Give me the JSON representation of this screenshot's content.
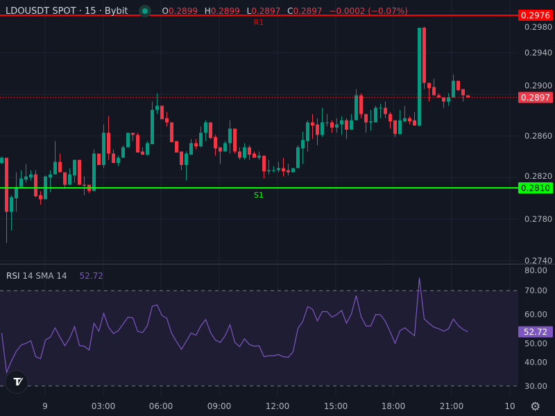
{
  "header": {
    "symbol": "LDOUSDT SPOT · 15 · Bybit",
    "status_color": "#089981",
    "ohlc": {
      "o_label": "O",
      "o": "0.2899",
      "h_label": "H",
      "h": "0.2899",
      "l_label": "L",
      "l": "0.2897",
      "c_label": "C",
      "c": "0.2897",
      "change": "−0.0002 (−0.07%)"
    }
  },
  "rsi_legend": {
    "name": "RSI",
    "params": "14 SMA 14",
    "value": "52.72"
  },
  "levels": [
    {
      "label": "R1",
      "price": 0.2976,
      "price_text": "0.2976",
      "color": "#ff0000"
    },
    {
      "label": "S1",
      "price": 0.281,
      "price_text": "0.2810",
      "color": "#00ff00"
    }
  ],
  "last_price": {
    "price": 0.2897,
    "text": "0.2897",
    "color": "#f23645"
  },
  "rsi_last": {
    "value": 52.72,
    "text": "52.72",
    "color": "#7e57c2"
  },
  "time_axis": [
    "9",
    "03:00",
    "06:00",
    "09:00",
    "12:00",
    "15:00",
    "18:00",
    "21:00",
    "10"
  ],
  "gear_icon": "gear-icon",
  "logo": "TV",
  "chart_data": [
    {
      "type": "candlestick",
      "colors": {
        "up": "#089981",
        "down": "#f23645"
      },
      "interval": "15",
      "price_ticks": [
        "0.2980",
        "0.2940",
        "0.2900",
        "0.2860",
        "0.2820",
        "0.2780",
        "0.2740"
      ],
      "ylim": [
        0.273,
        0.2983
      ],
      "grid": true,
      "candles_ohlc": [
        [
          0.2834,
          0.284,
          0.2833,
          0.2839
        ],
        [
          0.2839,
          0.2839,
          0.2757,
          0.2787
        ],
        [
          0.2787,
          0.2803,
          0.2769,
          0.2801
        ],
        [
          0.28,
          0.2825,
          0.2787,
          0.2811
        ],
        [
          0.2811,
          0.2827,
          0.2811,
          0.2819
        ],
        [
          0.2818,
          0.2833,
          0.2815,
          0.2821
        ],
        [
          0.282,
          0.2827,
          0.2817,
          0.2823
        ],
        [
          0.2823,
          0.2827,
          0.2801,
          0.2802
        ],
        [
          0.2803,
          0.2807,
          0.2794,
          0.2799
        ],
        [
          0.2799,
          0.2822,
          0.2799,
          0.2821
        ],
        [
          0.282,
          0.2827,
          0.2806,
          0.2823
        ],
        [
          0.2823,
          0.2855,
          0.2823,
          0.2835
        ],
        [
          0.2835,
          0.2843,
          0.2825,
          0.2825
        ],
        [
          0.2825,
          0.2825,
          0.2809,
          0.2813
        ],
        [
          0.2813,
          0.2829,
          0.2813,
          0.2823
        ],
        [
          0.2822,
          0.2837,
          0.2815,
          0.2837
        ],
        [
          0.2837,
          0.2837,
          0.2813,
          0.2813
        ],
        [
          0.2813,
          0.2821,
          0.2803,
          0.2812
        ],
        [
          0.2813,
          0.2813,
          0.2805,
          0.2807
        ],
        [
          0.2807,
          0.2847,
          0.2807,
          0.2843
        ],
        [
          0.2843,
          0.2843,
          0.2832,
          0.2832
        ],
        [
          0.2832,
          0.2871,
          0.2829,
          0.2863
        ],
        [
          0.2863,
          0.2879,
          0.2837,
          0.2843
        ],
        [
          0.2843,
          0.2847,
          0.2834,
          0.2834
        ],
        [
          0.2834,
          0.2841,
          0.2831,
          0.2839
        ],
        [
          0.2839,
          0.2851,
          0.2839,
          0.2849
        ],
        [
          0.2849,
          0.2863,
          0.2849,
          0.2863
        ],
        [
          0.2863,
          0.2863,
          0.2855,
          0.2861
        ],
        [
          0.2861,
          0.2863,
          0.2844,
          0.2844
        ],
        [
          0.2845,
          0.2849,
          0.2842,
          0.2842
        ],
        [
          0.2842,
          0.2855,
          0.2841,
          0.2853
        ],
        [
          0.2852,
          0.2893,
          0.2852,
          0.2885
        ],
        [
          0.2885,
          0.2901,
          0.2881,
          0.2889
        ],
        [
          0.2889,
          0.2889,
          0.2876,
          0.2876
        ],
        [
          0.2877,
          0.2883,
          0.2869,
          0.2873
        ],
        [
          0.2873,
          0.2873,
          0.2854,
          0.2854
        ],
        [
          0.2855,
          0.2855,
          0.2844,
          0.2844
        ],
        [
          0.2845,
          0.2845,
          0.2827,
          0.2832
        ],
        [
          0.2832,
          0.2845,
          0.2817,
          0.2843
        ],
        [
          0.2842,
          0.2857,
          0.2842,
          0.2853
        ],
        [
          0.2853,
          0.2857,
          0.2847,
          0.285
        ],
        [
          0.285,
          0.2869,
          0.2849,
          0.2863
        ],
        [
          0.2863,
          0.2875,
          0.2855,
          0.2873
        ],
        [
          0.2873,
          0.2873,
          0.2857,
          0.2858
        ],
        [
          0.2859,
          0.2861,
          0.2841,
          0.2848
        ],
        [
          0.2849,
          0.2849,
          0.2833,
          0.2845
        ],
        [
          0.2845,
          0.2855,
          0.2845,
          0.2853
        ],
        [
          0.2853,
          0.2875,
          0.2843,
          0.2867
        ],
        [
          0.2867,
          0.2867,
          0.2843,
          0.2845
        ],
        [
          0.2845,
          0.2849,
          0.2837,
          0.2839
        ],
        [
          0.2839,
          0.2853,
          0.2837,
          0.2849
        ],
        [
          0.2849,
          0.2851,
          0.2837,
          0.2842
        ],
        [
          0.2843,
          0.2845,
          0.2839,
          0.2839
        ],
        [
          0.2839,
          0.2845,
          0.2837,
          0.2841
        ],
        [
          0.2841,
          0.2841,
          0.2819,
          0.2826
        ],
        [
          0.2826,
          0.2837,
          0.2823,
          0.2827
        ],
        [
          0.2827,
          0.2831,
          0.2825,
          0.2827
        ],
        [
          0.2827,
          0.2835,
          0.2825,
          0.2829
        ],
        [
          0.2829,
          0.2839,
          0.2821,
          0.2826
        ],
        [
          0.2827,
          0.2833,
          0.2822,
          0.2825
        ],
        [
          0.2825,
          0.2829,
          0.2825,
          0.2829
        ],
        [
          0.2829,
          0.2851,
          0.2829,
          0.2849
        ],
        [
          0.2848,
          0.2864,
          0.2833,
          0.2856
        ],
        [
          0.2855,
          0.2875,
          0.2845,
          0.2873
        ],
        [
          0.2873,
          0.2881,
          0.2857,
          0.287
        ],
        [
          0.2871,
          0.2877,
          0.2851,
          0.2861
        ],
        [
          0.2861,
          0.2887,
          0.2859,
          0.2873
        ],
        [
          0.2873,
          0.2881,
          0.2869,
          0.2873
        ],
        [
          0.2873,
          0.2875,
          0.2863,
          0.2868
        ],
        [
          0.2868,
          0.2877,
          0.2863,
          0.2871
        ],
        [
          0.2871,
          0.2879,
          0.2861,
          0.2875
        ],
        [
          0.2875,
          0.2877,
          0.2857,
          0.2866
        ],
        [
          0.2866,
          0.2881,
          0.2866,
          0.2875
        ],
        [
          0.2875,
          0.2905,
          0.2875,
          0.2899
        ],
        [
          0.2899,
          0.2901,
          0.2877,
          0.2881
        ],
        [
          0.2881,
          0.2881,
          0.2863,
          0.2873
        ],
        [
          0.2873,
          0.2885,
          0.2865,
          0.2874
        ],
        [
          0.2873,
          0.2889,
          0.2873,
          0.2887
        ],
        [
          0.2887,
          0.2891,
          0.2877,
          0.2887
        ],
        [
          0.2887,
          0.2893,
          0.2877,
          0.2881
        ],
        [
          0.2881,
          0.2883,
          0.2867,
          0.2874
        ],
        [
          0.2875,
          0.2875,
          0.2859,
          0.2862
        ],
        [
          0.2862,
          0.2885,
          0.2861,
          0.2875
        ],
        [
          0.2874,
          0.2889,
          0.2873,
          0.2877
        ],
        [
          0.2877,
          0.2879,
          0.2871,
          0.2874
        ],
        [
          0.2875,
          0.2883,
          0.287,
          0.287
        ],
        [
          0.287,
          0.2964,
          0.2869,
          0.2964
        ],
        [
          0.2964,
          0.2965,
          0.2905,
          0.2911
        ],
        [
          0.2911,
          0.2911,
          0.2893,
          0.2906
        ],
        [
          0.2907,
          0.2915,
          0.2899,
          0.2899
        ],
        [
          0.2899,
          0.2901,
          0.2897,
          0.2897
        ],
        [
          0.2897,
          0.2897,
          0.2887,
          0.2893
        ],
        [
          0.2893,
          0.2901,
          0.2889,
          0.2897
        ],
        [
          0.2897,
          0.2919,
          0.2897,
          0.2913
        ],
        [
          0.2913,
          0.2913,
          0.2903,
          0.2904
        ],
        [
          0.2905,
          0.2905,
          0.2893,
          0.2899
        ],
        [
          0.2899,
          0.2899,
          0.2897,
          0.2897
        ]
      ]
    },
    {
      "type": "line",
      "name": "RSI",
      "color": "#7e57c2",
      "ylim": [
        26,
        81
      ],
      "ticks": [
        "80.00",
        "70.00",
        "60.00",
        "50.00",
        "40.00",
        "30.00"
      ],
      "band": [
        30,
        70
      ],
      "values": [
        52.2,
        35.7,
        40.5,
        44.6,
        47.2,
        47.9,
        49.0,
        42.3,
        41.5,
        49.3,
        50.5,
        54.4,
        50.5,
        46.9,
        50.1,
        54.9,
        47.0,
        46.7,
        45.1,
        56.3,
        53.0,
        60.5,
        54.7,
        52.0,
        53.2,
        56.0,
        58.9,
        58.6,
        52.9,
        52.4,
        55.4,
        63.5,
        64.0,
        59.6,
        58.4,
        52.0,
        48.6,
        45.4,
        48.8,
        52.2,
        51.3,
        55.2,
        57.9,
        52.4,
        49.3,
        48.3,
        51.1,
        55.7,
        48.3,
        46.5,
        49.8,
        47.4,
        46.7,
        46.9,
        42.3,
        42.7,
        42.7,
        43.2,
        42.3,
        42.0,
        44.4,
        54.2,
        57.1,
        63.3,
        62.2,
        57.3,
        61.2,
        61.2,
        58.9,
        60.0,
        61.7,
        56.3,
        60.2,
        67.9,
        59.1,
        55.2,
        55.2,
        60.0,
        59.9,
        57.1,
        52.7,
        47.9,
        53.2,
        54.4,
        52.7,
        51.1,
        75.4,
        58.1,
        56.3,
        54.7,
        54.0,
        53.0,
        54.0,
        58.1,
        55.4,
        53.7,
        52.72
      ]
    }
  ]
}
